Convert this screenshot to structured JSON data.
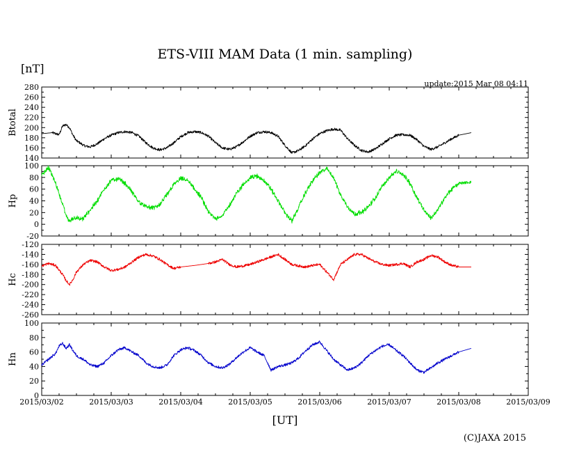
{
  "header": {
    "title": "ETS-VIII MAM Data (1 min. sampling)",
    "unit": "[nT]",
    "update": "update:2015 Mar 08 04:11"
  },
  "footer": {
    "xlabel": "[UT]",
    "copyright": "(C)JAXA 2015"
  },
  "chart_data": [
    {
      "type": "line",
      "name": "Btotal",
      "ylabel": "Btotal",
      "color": "#000000",
      "ylim": [
        140,
        280
      ],
      "yticks": [
        140,
        160,
        180,
        200,
        220,
        240,
        260,
        280
      ],
      "x_unit": "days since 2015/03/02 00:00 UT",
      "x": [
        0,
        0.15,
        0.25,
        0.3,
        0.35,
        0.4,
        0.45,
        0.5,
        0.55,
        0.6,
        0.65,
        0.7,
        0.8,
        0.9,
        1.0,
        1.1,
        1.2,
        1.3,
        1.4,
        1.5,
        1.6,
        1.7,
        1.8,
        1.9,
        2.0,
        2.1,
        2.2,
        2.3,
        2.4,
        2.5,
        2.6,
        2.7,
        2.8,
        2.9,
        3.0,
        3.1,
        3.2,
        3.3,
        3.4,
        3.5,
        3.6,
        3.7,
        3.8,
        3.9,
        4.0,
        4.1,
        4.2,
        4.3,
        4.4,
        4.5,
        4.6,
        4.7,
        4.8,
        4.9,
        5.0,
        5.1,
        5.2,
        5.3,
        5.4,
        5.5,
        5.6,
        5.7,
        5.8,
        5.9,
        6.0,
        6.18
      ],
      "y": [
        188,
        190,
        186,
        203,
        206,
        200,
        185,
        174,
        170,
        165,
        163,
        162,
        168,
        178,
        185,
        190,
        192,
        190,
        183,
        170,
        160,
        156,
        160,
        170,
        182,
        190,
        192,
        190,
        183,
        170,
        160,
        157,
        162,
        172,
        183,
        190,
        192,
        190,
        183,
        165,
        150,
        155,
        165,
        178,
        188,
        194,
        197,
        195,
        178,
        165,
        155,
        152,
        158,
        168,
        178,
        185,
        186,
        185,
        176,
        163,
        157,
        162,
        170,
        178,
        185,
        190
      ]
    },
    {
      "type": "line",
      "name": "Hp",
      "ylabel": "Hp",
      "color": "#00dd00",
      "ylim": [
        -20,
        100
      ],
      "yticks": [
        -20,
        0,
        20,
        40,
        60,
        80,
        100
      ],
      "x_unit": "days since 2015/03/02 00:00 UT",
      "x": [
        0,
        0.1,
        0.2,
        0.3,
        0.35,
        0.4,
        0.45,
        0.5,
        0.55,
        0.6,
        0.7,
        0.8,
        0.9,
        1.0,
        1.1,
        1.2,
        1.3,
        1.4,
        1.5,
        1.6,
        1.7,
        1.8,
        1.9,
        2.0,
        2.1,
        2.2,
        2.3,
        2.4,
        2.5,
        2.6,
        2.7,
        2.8,
        2.9,
        3.0,
        3.1,
        3.2,
        3.3,
        3.4,
        3.5,
        3.6,
        3.7,
        3.8,
        3.9,
        4.0,
        4.1,
        4.2,
        4.3,
        4.4,
        4.5,
        4.6,
        4.7,
        4.8,
        4.9,
        5.0,
        5.1,
        5.2,
        5.3,
        5.4,
        5.5,
        5.6,
        5.7,
        5.8,
        5.9,
        6.0,
        6.18
      ],
      "y": [
        85,
        97,
        70,
        35,
        15,
        5,
        10,
        12,
        8,
        10,
        25,
        40,
        60,
        75,
        78,
        70,
        55,
        38,
        30,
        28,
        33,
        50,
        68,
        78,
        75,
        60,
        45,
        20,
        10,
        15,
        32,
        52,
        68,
        80,
        82,
        75,
        60,
        40,
        20,
        5,
        30,
        55,
        75,
        88,
        95,
        80,
        50,
        30,
        18,
        20,
        30,
        45,
        65,
        80,
        90,
        85,
        70,
        45,
        25,
        10,
        25,
        45,
        60,
        70,
        72
      ]
    },
    {
      "type": "line",
      "name": "Hc",
      "ylabel": "Hc",
      "color": "#ee0000",
      "ylim": [
        -260,
        -120
      ],
      "yticks": [
        -260,
        -240,
        -220,
        -200,
        -180,
        -160,
        -140,
        -120
      ],
      "x_unit": "days since 2015/03/02 00:00 UT",
      "x": [
        0,
        0.1,
        0.2,
        0.3,
        0.35,
        0.4,
        0.45,
        0.5,
        0.6,
        0.7,
        0.8,
        0.9,
        1.0,
        1.1,
        1.2,
        1.3,
        1.4,
        1.5,
        1.6,
        1.7,
        1.8,
        1.9,
        2.0,
        2.2,
        2.4,
        2.5,
        2.6,
        2.7,
        2.8,
        2.9,
        3.0,
        3.1,
        3.2,
        3.3,
        3.4,
        3.5,
        3.6,
        3.7,
        3.8,
        3.9,
        4.0,
        4.1,
        4.2,
        4.3,
        4.4,
        4.5,
        4.6,
        4.7,
        4.8,
        4.9,
        5.0,
        5.1,
        5.2,
        5.3,
        5.4,
        5.5,
        5.6,
        5.7,
        5.8,
        5.9,
        6.0,
        6.18
      ],
      "y": [
        -163,
        -158,
        -162,
        -180,
        -192,
        -200,
        -190,
        -175,
        -160,
        -152,
        -155,
        -165,
        -172,
        -170,
        -165,
        -155,
        -145,
        -140,
        -143,
        -150,
        -160,
        -168,
        -165,
        -162,
        -158,
        -155,
        -150,
        -160,
        -165,
        -163,
        -160,
        -155,
        -150,
        -145,
        -140,
        -150,
        -160,
        -163,
        -165,
        -162,
        -160,
        -175,
        -190,
        -160,
        -150,
        -140,
        -140,
        -148,
        -155,
        -160,
        -162,
        -160,
        -158,
        -165,
        -155,
        -150,
        -142,
        -145,
        -155,
        -162,
        -165,
        -165
      ]
    },
    {
      "type": "line",
      "name": "Hn",
      "ylabel": "Hn",
      "color": "#0000cc",
      "ylim": [
        0,
        100
      ],
      "yticks": [
        0,
        20,
        40,
        60,
        80,
        100
      ],
      "x_unit": "days since 2015/03/02 00:00 UT",
      "x": [
        0,
        0.1,
        0.2,
        0.25,
        0.3,
        0.35,
        0.4,
        0.45,
        0.5,
        0.55,
        0.6,
        0.7,
        0.8,
        0.9,
        1.0,
        1.1,
        1.2,
        1.3,
        1.4,
        1.5,
        1.6,
        1.7,
        1.8,
        1.9,
        2.0,
        2.1,
        2.2,
        2.3,
        2.4,
        2.5,
        2.6,
        2.7,
        2.8,
        2.9,
        3.0,
        3.1,
        3.2,
        3.3,
        3.4,
        3.5,
        3.6,
        3.7,
        3.8,
        3.9,
        4.0,
        4.1,
        4.2,
        4.3,
        4.4,
        4.5,
        4.6,
        4.7,
        4.8,
        4.9,
        5.0,
        5.1,
        5.2,
        5.3,
        5.4,
        5.5,
        5.6,
        5.7,
        5.8,
        5.9,
        6.0,
        6.18
      ],
      "y": [
        42,
        50,
        58,
        68,
        72,
        65,
        70,
        62,
        55,
        52,
        50,
        42,
        40,
        45,
        55,
        63,
        66,
        60,
        55,
        45,
        40,
        38,
        42,
        55,
        63,
        66,
        62,
        55,
        45,
        40,
        38,
        43,
        52,
        60,
        66,
        60,
        55,
        35,
        40,
        42,
        45,
        52,
        62,
        70,
        74,
        62,
        50,
        42,
        35,
        38,
        45,
        55,
        62,
        68,
        70,
        62,
        55,
        45,
        35,
        32,
        38,
        45,
        50,
        55,
        60,
        65
      ]
    }
  ],
  "x_axis": {
    "range_days": [
      0,
      7
    ],
    "tick_labels": [
      "2015/03/02",
      "2015/03/03",
      "2015/03/04",
      "2015/03/05",
      "2015/03/06",
      "2015/03/07",
      "2015/03/08",
      "2015/03/09"
    ]
  }
}
